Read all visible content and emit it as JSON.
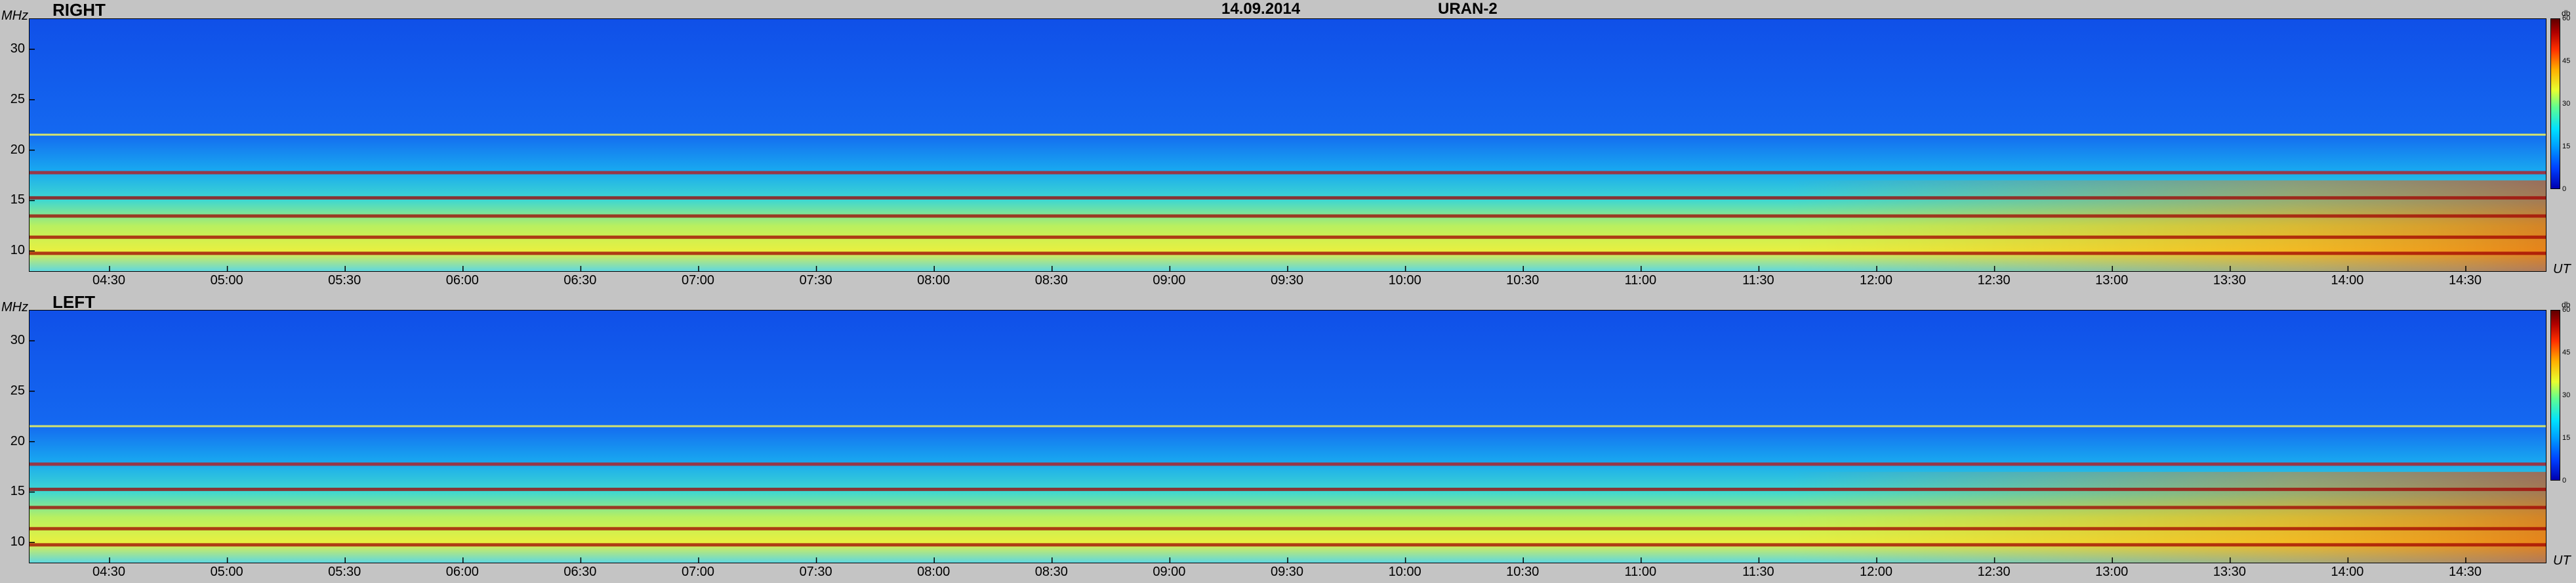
{
  "header": {
    "date": "14.09.2014",
    "instrument": "URAN-2"
  },
  "chart_data": [
    {
      "type": "heatmap",
      "title": "RIGHT",
      "ylabel": "MHz",
      "xlabel": "UT",
      "y_ticks": [
        "30",
        "25",
        "20",
        "15",
        "10"
      ],
      "x_ticks": [
        "04:30",
        "05:00",
        "05:30",
        "06:00",
        "06:30",
        "07:00",
        "07:30",
        "08:00",
        "08:30",
        "09:00",
        "09:30",
        "10:00",
        "10:30",
        "11:00",
        "11:30",
        "12:00",
        "12:30",
        "13:00",
        "13:30",
        "14:00",
        "14:30"
      ],
      "ylim": [
        8,
        33
      ],
      "colorbar": {
        "unit": "db",
        "ticks": [
          "60",
          "45",
          "30",
          "15",
          "0"
        ],
        "range": [
          0,
          60
        ]
      },
      "bands_mhz": [
        9.8,
        11.4,
        13.5,
        15.3,
        17.8,
        21.5
      ]
    },
    {
      "type": "heatmap",
      "title": "LEFT",
      "ylabel": "MHz",
      "xlabel": "UT",
      "y_ticks": [
        "30",
        "25",
        "20",
        "15",
        "10"
      ],
      "x_ticks": [
        "04:30",
        "05:00",
        "05:30",
        "06:00",
        "06:30",
        "07:00",
        "07:30",
        "08:00",
        "08:30",
        "09:00",
        "09:30",
        "10:00",
        "10:30",
        "11:00",
        "11:30",
        "12:00",
        "12:30",
        "13:00",
        "13:30",
        "14:00",
        "14:30"
      ],
      "ylim": [
        8,
        33
      ],
      "colorbar": {
        "unit": "db",
        "ticks": [
          "60",
          "45",
          "30",
          "15",
          "0"
        ],
        "range": [
          0,
          60
        ]
      },
      "bands_mhz": [
        9.8,
        11.4,
        13.5,
        15.3,
        17.8,
        21.5
      ]
    }
  ]
}
